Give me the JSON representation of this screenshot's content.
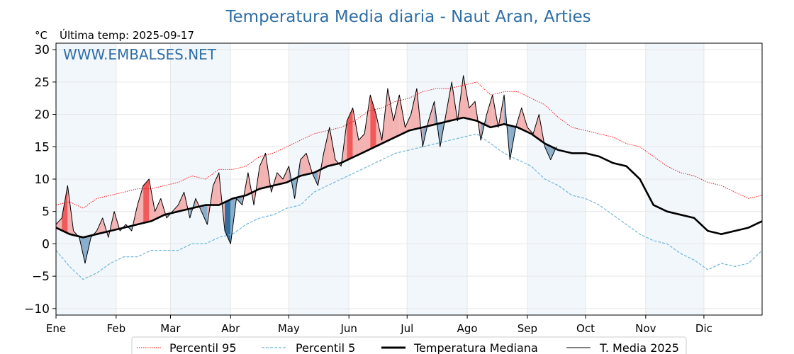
{
  "chart_data": {
    "type": "line",
    "title": "Temperatura Media diaria - Naut Aran, Arties",
    "unit_label": "°C",
    "last_temp_label": "Última temp: 2025-09-17",
    "watermark": "WWW.EMBALSES.NET",
    "ylim": [
      -11,
      31
    ],
    "yticks": [
      -10,
      -5,
      0,
      5,
      10,
      15,
      20,
      25,
      30
    ],
    "ytick_labels": [
      "−10",
      "−5",
      "0",
      "5",
      "10",
      "15",
      "20",
      "25",
      "30"
    ],
    "xlim": [
      1,
      365
    ],
    "months": [
      {
        "label": "Ene",
        "day": 1
      },
      {
        "label": "Feb",
        "day": 32
      },
      {
        "label": "Mar",
        "day": 60
      },
      {
        "label": "Abr",
        "day": 91
      },
      {
        "label": "May",
        "day": 121
      },
      {
        "label": "Jun",
        "day": 152
      },
      {
        "label": "Jul",
        "day": 182
      },
      {
        "label": "Ago",
        "day": 213
      },
      {
        "label": "Sep",
        "day": 244
      },
      {
        "label": "Oct",
        "day": 274
      },
      {
        "label": "Nov",
        "day": 305
      },
      {
        "label": "Dic",
        "day": 335
      }
    ],
    "grid": true,
    "legend_position": "bottom",
    "series": [
      {
        "key": "p95",
        "name": "Percentil 95",
        "color": "#ff0000",
        "style": "dotted",
        "x": [
          1,
          8,
          15,
          22,
          29,
          36,
          43,
          50,
          57,
          64,
          71,
          78,
          85,
          92,
          99,
          106,
          113,
          120,
          127,
          134,
          141,
          148,
          155,
          162,
          169,
          176,
          183,
          190,
          197,
          204,
          211,
          218,
          225,
          232,
          239,
          246,
          253,
          260,
          267,
          274,
          281,
          288,
          295,
          302,
          309,
          316,
          323,
          330,
          337,
          344,
          351,
          358,
          365
        ],
        "y": [
          6,
          6.5,
          5.5,
          7,
          7.5,
          8,
          8.5,
          8.5,
          9,
          9.5,
          10.5,
          10,
          11.5,
          11.5,
          12,
          13.5,
          14,
          15,
          16,
          17,
          17.5,
          18,
          19,
          20.5,
          21,
          22,
          22.5,
          23.5,
          24,
          24,
          24.5,
          25,
          23,
          23.5,
          23.5,
          22.5,
          21.5,
          19.5,
          18,
          17.5,
          17,
          16.5,
          15.5,
          15,
          13.5,
          12,
          11,
          10.5,
          9.5,
          9,
          8,
          7,
          7.5
        ]
      },
      {
        "key": "p5",
        "name": "Percentil 5",
        "color": "#6fb6d8",
        "style": "dashed",
        "x": [
          1,
          8,
          15,
          22,
          29,
          36,
          43,
          50,
          57,
          64,
          71,
          78,
          85,
          92,
          99,
          106,
          113,
          120,
          127,
          134,
          141,
          148,
          155,
          162,
          169,
          176,
          183,
          190,
          197,
          204,
          211,
          218,
          225,
          232,
          239,
          246,
          253,
          260,
          267,
          274,
          281,
          288,
          295,
          302,
          309,
          316,
          323,
          330,
          337,
          344,
          351,
          358,
          365
        ],
        "y": [
          -1,
          -3.5,
          -5.5,
          -4.5,
          -3,
          -2,
          -2,
          -1,
          -1,
          -1,
          0,
          0,
          1,
          1.5,
          3,
          4,
          4.5,
          5.5,
          6,
          8,
          9,
          10,
          11,
          12,
          13,
          14,
          14.5,
          15,
          15.5,
          16,
          16.5,
          17,
          15.5,
          14,
          13,
          12,
          10,
          9,
          7.5,
          7,
          6,
          4.5,
          3,
          1.5,
          0.5,
          0,
          -1.5,
          -2.5,
          -4,
          -3,
          -3.5,
          -3,
          -1
        ]
      },
      {
        "key": "median",
        "name": "Temperatura Mediana",
        "color": "#000000",
        "style": "solid-thick",
        "x": [
          1,
          8,
          15,
          22,
          29,
          36,
          43,
          50,
          57,
          64,
          71,
          78,
          85,
          92,
          99,
          106,
          113,
          120,
          127,
          134,
          141,
          148,
          155,
          162,
          169,
          176,
          183,
          190,
          197,
          204,
          211,
          218,
          225,
          232,
          239,
          246,
          253,
          260,
          267,
          274,
          281,
          288,
          295,
          302,
          309,
          316,
          323,
          330,
          337,
          344,
          351,
          358,
          365
        ],
        "y": [
          2.5,
          1.5,
          1,
          1.5,
          2,
          2.5,
          3,
          3.5,
          4.5,
          5,
          5.5,
          6,
          6,
          7,
          7.5,
          8.5,
          9,
          9.5,
          10.5,
          11,
          12,
          12.5,
          13.5,
          14.5,
          15.5,
          16.5,
          17.5,
          18,
          18.5,
          19,
          19.5,
          19,
          18,
          18.5,
          18,
          17,
          15.5,
          14.5,
          14,
          14,
          13.5,
          12.5,
          12,
          10,
          6,
          5,
          4.5,
          4,
          2,
          1.5,
          2,
          2.5,
          3.5
        ]
      },
      {
        "key": "y2025",
        "name": "T. Media 2025",
        "color": "#000000",
        "style": "solid-thin",
        "x": [
          1,
          4,
          7,
          10,
          13,
          16,
          19,
          22,
          25,
          28,
          31,
          34,
          37,
          40,
          43,
          46,
          49,
          52,
          55,
          58,
          61,
          64,
          67,
          70,
          73,
          76,
          79,
          82,
          85,
          88,
          91,
          94,
          97,
          100,
          103,
          106,
          109,
          112,
          115,
          118,
          121,
          124,
          127,
          130,
          133,
          136,
          139,
          142,
          145,
          148,
          151,
          154,
          157,
          160,
          163,
          166,
          169,
          172,
          175,
          178,
          181,
          184,
          187,
          190,
          193,
          196,
          199,
          202,
          205,
          208,
          211,
          214,
          217,
          220,
          223,
          226,
          229,
          232,
          235,
          238,
          241,
          244,
          247,
          250,
          253,
          256,
          259
        ],
        "y": [
          3,
          4,
          9,
          2,
          1,
          -3,
          1,
          2,
          4,
          1,
          5,
          2,
          3,
          2,
          6,
          9,
          10,
          5,
          7,
          4,
          5,
          6,
          8,
          4,
          7,
          5,
          3,
          9,
          11,
          2,
          0,
          7,
          6,
          11,
          6,
          12,
          14,
          8,
          11,
          10,
          12,
          7,
          13,
          14,
          11,
          9,
          14,
          18,
          13,
          12,
          19,
          21,
          16,
          17,
          23,
          20,
          16,
          24,
          19,
          23,
          18,
          20,
          24,
          15,
          19,
          22,
          15,
          20,
          25,
          19,
          26,
          21,
          22,
          16,
          20,
          23,
          18,
          23,
          13,
          18,
          21,
          18,
          17,
          20,
          15,
          13,
          15
        ]
      }
    ]
  }
}
